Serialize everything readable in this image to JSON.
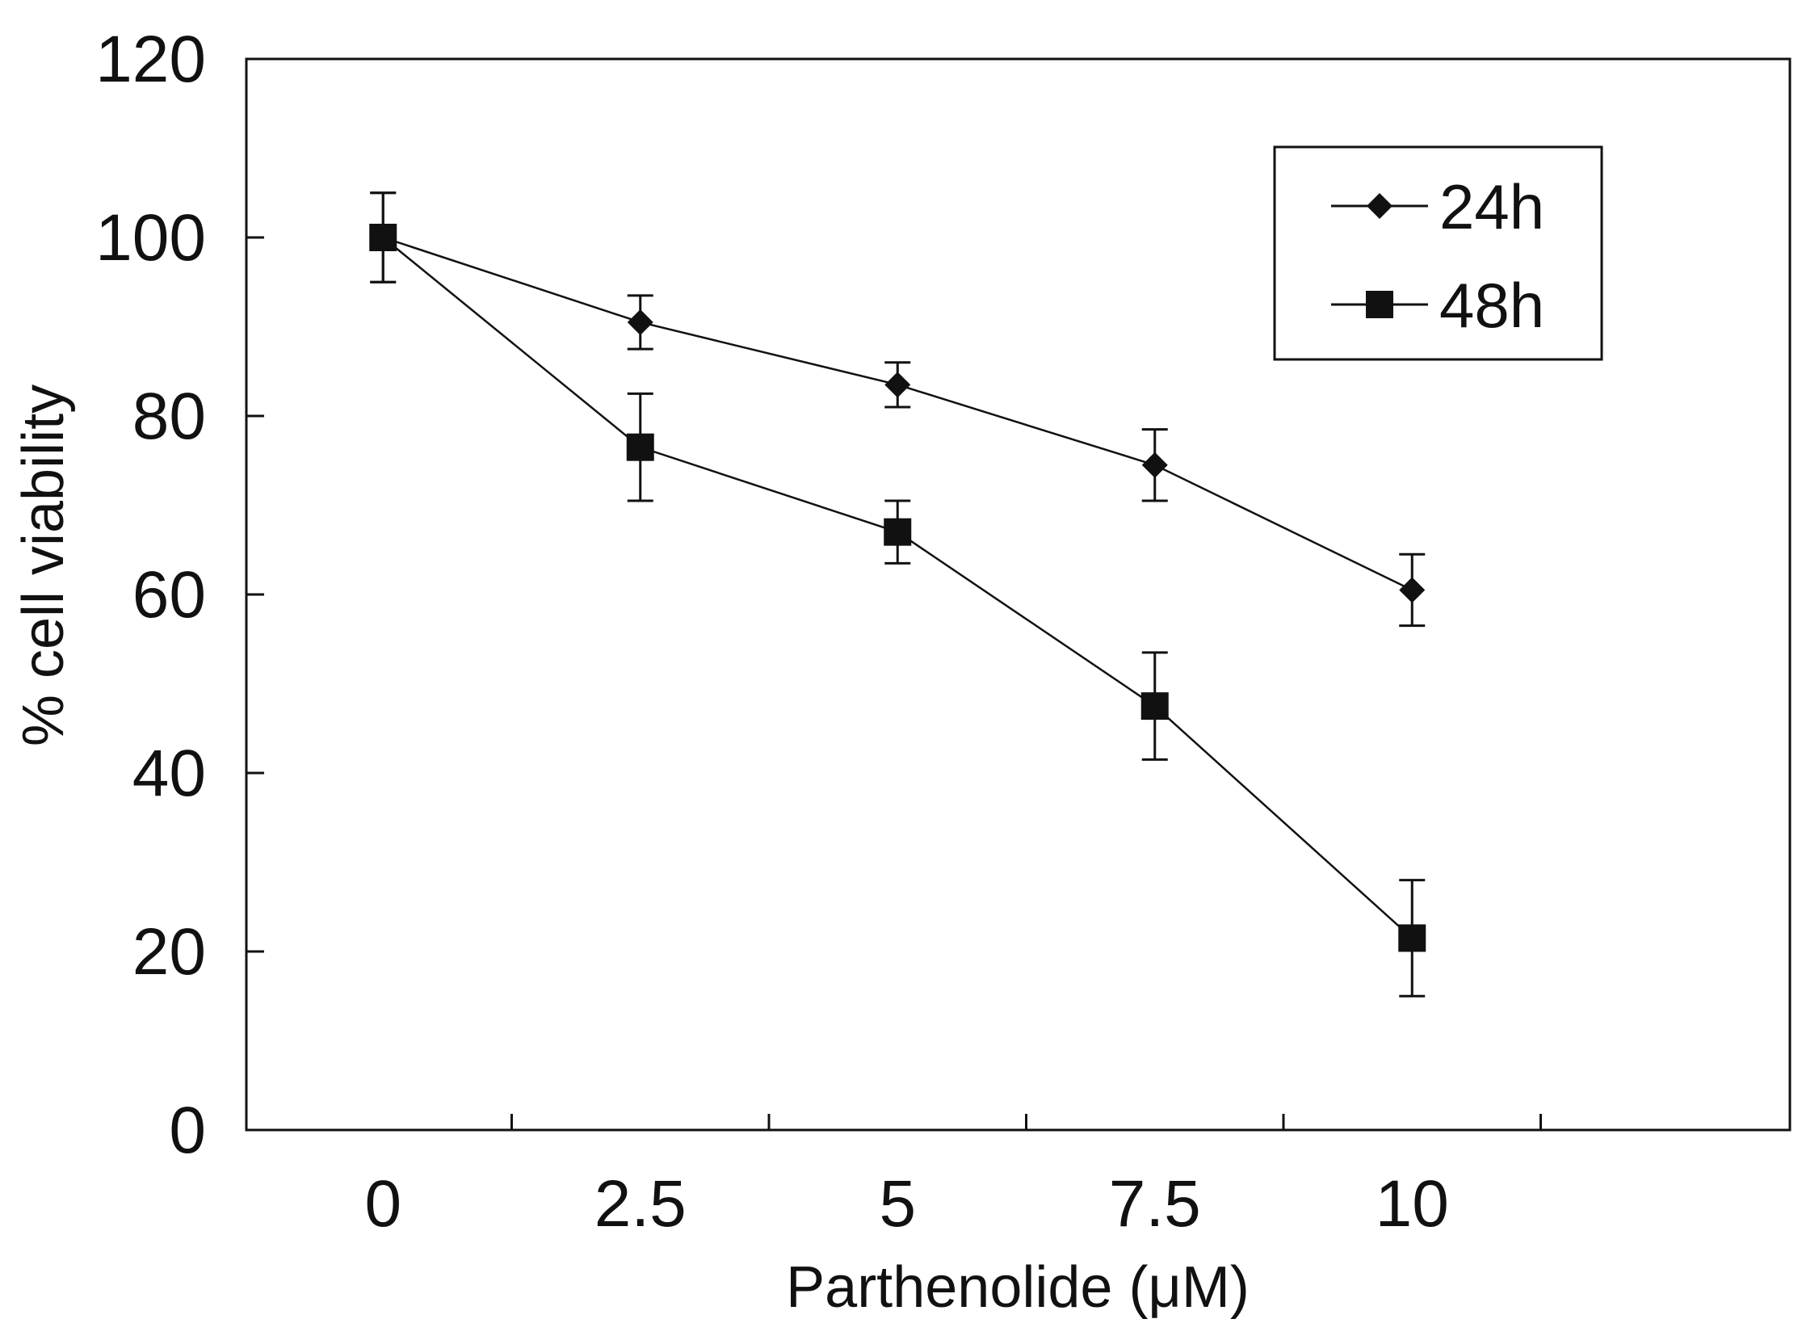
{
  "chart_data": {
    "type": "line",
    "title": "",
    "xlabel": "Parthenolide (μM)",
    "ylabel": "% cell viability",
    "categories": [
      "0",
      "2.5",
      "5",
      "7.5",
      "10"
    ],
    "ylim": [
      0,
      120
    ],
    "yticks": [
      0,
      20,
      40,
      60,
      80,
      100,
      120
    ],
    "grid": false,
    "legend_position": "top-right",
    "series": [
      {
        "name": "24h",
        "marker": "diamond",
        "values": [
          100,
          90.5,
          83.5,
          74.5,
          60.5
        ],
        "errors": [
          5,
          3,
          2.5,
          4,
          4
        ]
      },
      {
        "name": "48h",
        "marker": "square",
        "values": [
          100,
          76.5,
          67,
          47.5,
          21.5
        ],
        "errors": [
          5,
          6,
          3.5,
          6,
          6.5
        ]
      }
    ]
  }
}
